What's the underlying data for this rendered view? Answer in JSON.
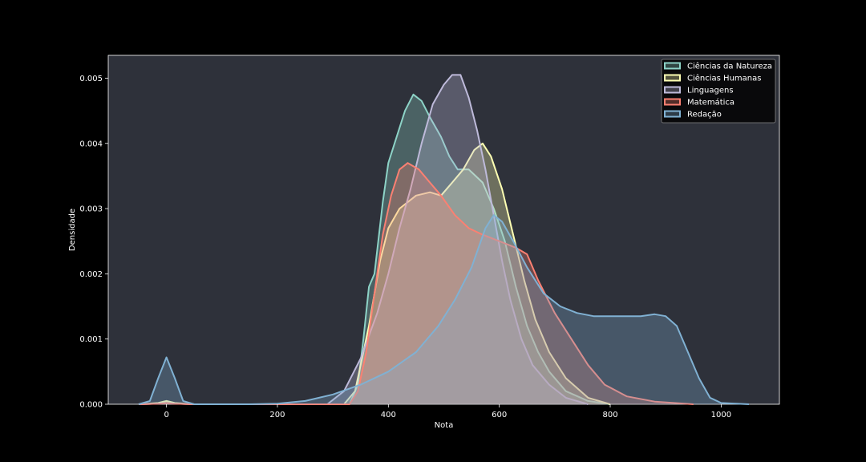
{
  "chart_data": {
    "type": "area",
    "title": "",
    "xlabel": "Nota",
    "ylabel": "Densidade",
    "xlim": [
      -105,
      1105
    ],
    "ylim": [
      0,
      0.00535
    ],
    "x_ticks": [
      0,
      200,
      400,
      600,
      800,
      1000
    ],
    "y_ticks": [
      0.0,
      0.001,
      0.002,
      0.003,
      0.004,
      0.005
    ],
    "y_tick_labels": [
      "0.000",
      "0.001",
      "0.002",
      "0.003",
      "0.004",
      "0.005"
    ],
    "grid": false,
    "legend_position": "top-right",
    "background": "#2e313a",
    "series": [
      {
        "name": "Ciências da Natureza",
        "color": "#8dd3c7",
        "points": [
          [
            -50,
            0
          ],
          [
            -15,
            1e-05
          ],
          [
            0,
            3e-05
          ],
          [
            15,
            1e-05
          ],
          [
            50,
            0
          ],
          [
            330,
            0
          ],
          [
            345,
            0.0003
          ],
          [
            355,
            0.001
          ],
          [
            365,
            0.0018
          ],
          [
            375,
            0.002
          ],
          [
            390,
            0.0031
          ],
          [
            400,
            0.0037
          ],
          [
            415,
            0.0041
          ],
          [
            430,
            0.0045
          ],
          [
            445,
            0.00475
          ],
          [
            460,
            0.00465
          ],
          [
            475,
            0.0044
          ],
          [
            495,
            0.0041
          ],
          [
            510,
            0.0038
          ],
          [
            525,
            0.0036
          ],
          [
            545,
            0.0036
          ],
          [
            570,
            0.0034
          ],
          [
            590,
            0.003
          ],
          [
            610,
            0.0025
          ],
          [
            630,
            0.0018
          ],
          [
            650,
            0.0012
          ],
          [
            670,
            0.0008
          ],
          [
            690,
            0.0005
          ],
          [
            720,
            0.0002
          ],
          [
            760,
            5e-05
          ],
          [
            800,
            0
          ]
        ]
      },
      {
        "name": "Ciências Humanas",
        "color": "#feffb3",
        "points": [
          [
            -50,
            0
          ],
          [
            -15,
            2e-05
          ],
          [
            0,
            5e-05
          ],
          [
            15,
            2e-05
          ],
          [
            50,
            0
          ],
          [
            320,
            0
          ],
          [
            340,
            0.0002
          ],
          [
            365,
            0.0012
          ],
          [
            385,
            0.0022
          ],
          [
            400,
            0.0027
          ],
          [
            420,
            0.003
          ],
          [
            450,
            0.0032
          ],
          [
            475,
            0.00325
          ],
          [
            495,
            0.0032
          ],
          [
            515,
            0.0034
          ],
          [
            535,
            0.0036
          ],
          [
            555,
            0.0039
          ],
          [
            570,
            0.004
          ],
          [
            585,
            0.0038
          ],
          [
            605,
            0.0033
          ],
          [
            625,
            0.0026
          ],
          [
            645,
            0.0019
          ],
          [
            665,
            0.0013
          ],
          [
            690,
            0.0008
          ],
          [
            720,
            0.0004
          ],
          [
            760,
            0.0001
          ],
          [
            800,
            0
          ]
        ]
      },
      {
        "name": "Linguagens",
        "color": "#bebada",
        "points": [
          [
            -50,
            0
          ],
          [
            -15,
            1e-05
          ],
          [
            0,
            2e-05
          ],
          [
            15,
            1e-05
          ],
          [
            50,
            0
          ],
          [
            290,
            0
          ],
          [
            320,
            0.0002
          ],
          [
            350,
            0.0007
          ],
          [
            380,
            0.0014
          ],
          [
            400,
            0.002
          ],
          [
            420,
            0.0027
          ],
          [
            440,
            0.0033
          ],
          [
            460,
            0.004
          ],
          [
            480,
            0.0046
          ],
          [
            500,
            0.0049
          ],
          [
            515,
            0.00505
          ],
          [
            530,
            0.00505
          ],
          [
            545,
            0.0047
          ],
          [
            560,
            0.0042
          ],
          [
            575,
            0.0036
          ],
          [
            590,
            0.0029
          ],
          [
            605,
            0.0022
          ],
          [
            620,
            0.0016
          ],
          [
            640,
            0.001
          ],
          [
            660,
            0.0006
          ],
          [
            690,
            0.0003
          ],
          [
            720,
            0.0001
          ],
          [
            760,
            0
          ]
        ]
      },
      {
        "name": "Matemática",
        "color": "#fb8072",
        "points": [
          [
            -50,
            0
          ],
          [
            -10,
            1e-05
          ],
          [
            0,
            2e-05
          ],
          [
            10,
            1e-05
          ],
          [
            50,
            0
          ],
          [
            330,
            0
          ],
          [
            345,
            0.0002
          ],
          [
            360,
            0.0008
          ],
          [
            375,
            0.0017
          ],
          [
            390,
            0.0026
          ],
          [
            405,
            0.0032
          ],
          [
            420,
            0.0036
          ],
          [
            435,
            0.0037
          ],
          [
            455,
            0.0036
          ],
          [
            475,
            0.0034
          ],
          [
            495,
            0.0032
          ],
          [
            520,
            0.0029
          ],
          [
            545,
            0.0027
          ],
          [
            570,
            0.0026
          ],
          [
            600,
            0.0025
          ],
          [
            630,
            0.0024
          ],
          [
            650,
            0.0023
          ],
          [
            670,
            0.0019
          ],
          [
            700,
            0.0014
          ],
          [
            730,
            0.001
          ],
          [
            760,
            0.0006
          ],
          [
            790,
            0.0003
          ],
          [
            830,
            0.00012
          ],
          [
            880,
            4e-05
          ],
          [
            950,
            0
          ]
        ]
      },
      {
        "name": "Redação",
        "color": "#80b1d3",
        "points": [
          [
            -50,
            0
          ],
          [
            -30,
            5e-05
          ],
          [
            -15,
            0.0004
          ],
          [
            0,
            0.00072
          ],
          [
            15,
            0.0004
          ],
          [
            30,
            5e-05
          ],
          [
            50,
            0
          ],
          [
            150,
            0
          ],
          [
            200,
            1e-05
          ],
          [
            250,
            5e-05
          ],
          [
            300,
            0.00015
          ],
          [
            350,
            0.0003
          ],
          [
            400,
            0.0005
          ],
          [
            450,
            0.0008
          ],
          [
            490,
            0.0012
          ],
          [
            520,
            0.0016
          ],
          [
            550,
            0.0021
          ],
          [
            575,
            0.0027
          ],
          [
            590,
            0.0029
          ],
          [
            605,
            0.0028
          ],
          [
            625,
            0.0025
          ],
          [
            650,
            0.0021
          ],
          [
            680,
            0.0017
          ],
          [
            710,
            0.0015
          ],
          [
            740,
            0.0014
          ],
          [
            770,
            0.00135
          ],
          [
            800,
            0.00135
          ],
          [
            830,
            0.00135
          ],
          [
            855,
            0.00135
          ],
          [
            880,
            0.00138
          ],
          [
            900,
            0.00135
          ],
          [
            920,
            0.0012
          ],
          [
            940,
            0.0008
          ],
          [
            960,
            0.0004
          ],
          [
            980,
            0.0001
          ],
          [
            1000,
            2e-05
          ],
          [
            1050,
            0
          ]
        ]
      }
    ]
  }
}
